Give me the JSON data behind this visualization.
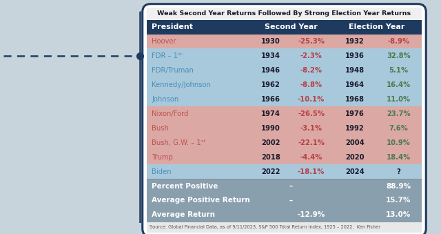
{
  "title": "Weak Second Year Returns Followed By Strong Election Year Returns",
  "rows": [
    {
      "president": "Hoover",
      "sy_year": "1930",
      "sy_ret": "-25.3%",
      "ey_year": "1932",
      "ey_ret": "-8.9%",
      "row_color": "red",
      "pres_color": "#c0504d"
    },
    {
      "president": "FDR – 1ˢᵗ",
      "sy_year": "1934",
      "sy_ret": "-2.3%",
      "ey_year": "1936",
      "ey_ret": "32.8%",
      "row_color": "blue",
      "pres_color": "#4a90b8"
    },
    {
      "president": "FDR/Truman",
      "sy_year": "1946",
      "sy_ret": "-8.2%",
      "ey_year": "1948",
      "ey_ret": "5.1%",
      "row_color": "blue",
      "pres_color": "#4a90b8"
    },
    {
      "president": "Kennedy/Johnson",
      "sy_year": "1962",
      "sy_ret": "-8.8%",
      "ey_year": "1964",
      "ey_ret": "16.4%",
      "row_color": "blue",
      "pres_color": "#4a90b8"
    },
    {
      "president": "Johnson",
      "sy_year": "1966",
      "sy_ret": "-10.1%",
      "ey_year": "1968",
      "ey_ret": "11.0%",
      "row_color": "blue",
      "pres_color": "#4a90b8"
    },
    {
      "president": "Nixon/Ford",
      "sy_year": "1974",
      "sy_ret": "-26.5%",
      "ey_year": "1976",
      "ey_ret": "23.7%",
      "row_color": "red",
      "pres_color": "#c0504d"
    },
    {
      "president": "Bush",
      "sy_year": "1990",
      "sy_ret": "-3.1%",
      "ey_year": "1992",
      "ey_ret": "7.6%",
      "row_color": "red",
      "pres_color": "#c0504d"
    },
    {
      "president": "Bush, G.W. – 1ˢᵗ",
      "sy_year": "2002",
      "sy_ret": "-22.1%",
      "ey_year": "2004",
      "ey_ret": "10.9%",
      "row_color": "red",
      "pres_color": "#c0504d"
    },
    {
      "president": "Trump",
      "sy_year": "2018",
      "sy_ret": "-4.4%",
      "ey_year": "2020",
      "ey_ret": "18.4%",
      "row_color": "red",
      "pres_color": "#c0504d"
    },
    {
      "president": "Biden",
      "sy_year": "2022",
      "sy_ret": "-18.1%",
      "ey_year": "2024",
      "ey_ret": "?",
      "row_color": "blue",
      "pres_color": "#4a90b8"
    }
  ],
  "summary_rows": [
    {
      "label": "Percent Positive",
      "sy_val": "",
      "ey_val": "88.9%"
    },
    {
      "label": "Average Positive Return",
      "sy_val": "",
      "ey_val": "15.7%"
    },
    {
      "label": "Average Return",
      "sy_val": "-12.9%",
      "ey_val": "13.0%"
    }
  ],
  "source": "Source: Global Financial Data, as of 9/11/2023. S&P 500 Total Return Index, 1925 – 2022.  Ken Fisher",
  "neg_color": "#b94040",
  "pos_color": "#4a7a4a",
  "header_bg": "#1e3a5f",
  "header_text": "#ffffff",
  "row_red_bg": "#dba8a4",
  "row_blue_bg": "#a8c8dc",
  "summary_bg": "#8a9fae",
  "summary_text": "#ffffff",
  "border_color": "#1e3a5f",
  "title_bg": "#f0f0f0",
  "outer_bg": "#c8d4dc",
  "source_bg": "#e8e8e8",
  "white": "#ffffff",
  "dark_text": "#1a1a2a",
  "dot_color": "#1e3a5f",
  "dash_color": "#2a4a70"
}
